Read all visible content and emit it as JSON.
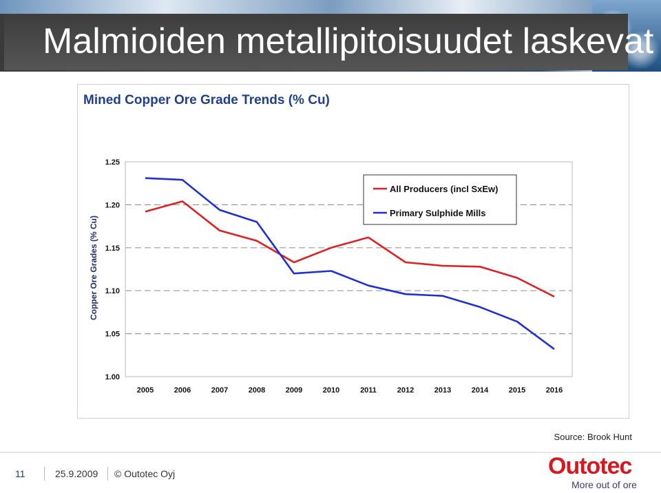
{
  "slide": {
    "title": "Malmioiden metallipitoisuudet laskevat",
    "source": "Source: Brook Hunt"
  },
  "footer": {
    "page_number": "11",
    "date": "25.9.2009",
    "copyright": "© Outotec Oyj",
    "logo_text": "Outotec",
    "logo_tagline": "More out of ore"
  },
  "colors": {
    "all_producers": "#e02020",
    "primary_sulphide": "#1f2fd0",
    "logo_red": "#d7191f",
    "title_bg": "#4a4a4a"
  },
  "chart_data": {
    "type": "line",
    "title": "Mined Copper Ore Grade Trends (% Cu)",
    "ylabel": "Copper Ore Grades (% Cu)",
    "xlabel": "",
    "x": [
      "2005",
      "2006",
      "2007",
      "2008",
      "2009",
      "2010",
      "2011",
      "2012",
      "2013",
      "2014",
      "2015",
      "2016"
    ],
    "ylim": [
      1.0,
      1.25
    ],
    "yticks": [
      "1.00",
      "1.05",
      "1.10",
      "1.15",
      "1.20",
      "1.25"
    ],
    "grid": "dashed horizontal at 1.05, 1.10, 1.15, 1.20",
    "legend_position": "top-right",
    "series": [
      {
        "name": "All Producers (incl SxEw)",
        "color": "#e02020",
        "values": [
          1.192,
          1.204,
          1.17,
          1.158,
          1.133,
          1.15,
          1.162,
          1.133,
          1.129,
          1.128,
          1.115,
          1.093
        ]
      },
      {
        "name": "Primary Sulphide Mills",
        "color": "#1f2fd0",
        "values": [
          1.231,
          1.229,
          1.194,
          1.18,
          1.12,
          1.123,
          1.106,
          1.096,
          1.094,
          1.081,
          1.064,
          1.032
        ]
      }
    ]
  }
}
